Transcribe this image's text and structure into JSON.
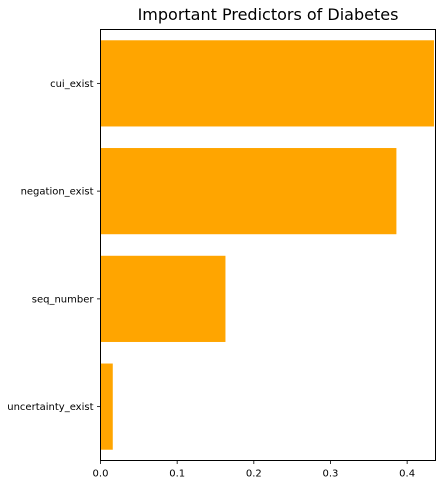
{
  "chart_data": {
    "type": "bar",
    "orientation": "horizontal",
    "title": "Important Predictors of Diabetes",
    "xlabel": "",
    "ylabel": "",
    "categories": [
      "cui_exist",
      "negation_exist",
      "seq_number",
      "uncertainty_exist"
    ],
    "values": [
      0.435,
      0.386,
      0.163,
      0.016
    ],
    "xlim": [
      0,
      0.437
    ],
    "xticks": [
      0.0,
      0.1,
      0.2,
      0.3,
      0.4
    ],
    "xtick_labels": [
      "0.0",
      "0.1",
      "0.2",
      "0.3",
      "0.4"
    ],
    "grid": false,
    "legend": "none",
    "bar_color": "#ffa500"
  }
}
